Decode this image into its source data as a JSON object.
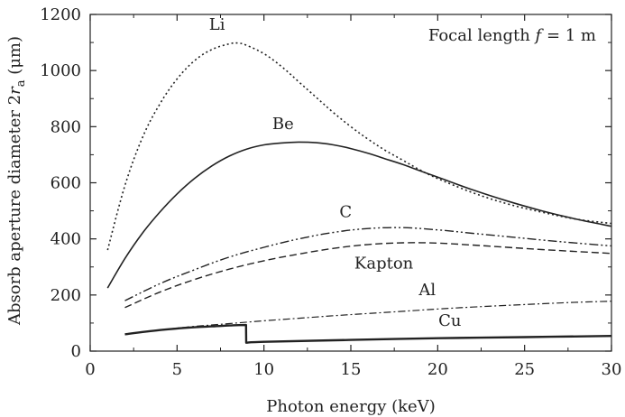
{
  "chart_data": {
    "type": "line",
    "xlabel": "Photon energy (keV)",
    "ylabel": {
      "prefix": "Absorb aperture diameter 2",
      "var": "r",
      "sub": "a",
      "suffix": " (μm)"
    },
    "xlim": [
      0,
      30
    ],
    "ylim": [
      0,
      1200
    ],
    "xticks": [
      0,
      5,
      10,
      15,
      20,
      25,
      30
    ],
    "yticks": [
      0,
      200,
      400,
      600,
      800,
      1000,
      1200
    ],
    "grid": false,
    "legend": "none",
    "annotation": {
      "prefix": "Focal length ",
      "var": "f",
      "suffix": " = 1 m"
    },
    "series": [
      {
        "name": "Li",
        "dash": "2,3",
        "width": 1.6,
        "label_at": [
          7.3,
          1145
        ],
        "points": [
          [
            1,
            360
          ],
          [
            2,
            590
          ],
          [
            3,
            760
          ],
          [
            4,
            880
          ],
          [
            5,
            970
          ],
          [
            6,
            1035
          ],
          [
            7,
            1075
          ],
          [
            8,
            1095
          ],
          [
            8.5,
            1098
          ],
          [
            9,
            1090
          ],
          [
            10,
            1060
          ],
          [
            11,
            1015
          ],
          [
            12,
            960
          ],
          [
            13,
            905
          ],
          [
            14,
            850
          ],
          [
            15,
            800
          ],
          [
            16,
            755
          ],
          [
            17,
            715
          ],
          [
            18,
            680
          ],
          [
            19,
            645
          ],
          [
            20,
            615
          ],
          [
            22,
            565
          ],
          [
            24,
            525
          ],
          [
            26,
            495
          ],
          [
            28,
            470
          ],
          [
            30,
            455
          ]
        ]
      },
      {
        "name": "Be",
        "dash": "",
        "width": 1.6,
        "label_at": [
          11.1,
          792
        ],
        "points": [
          [
            1,
            225
          ],
          [
            2,
            330
          ],
          [
            3,
            420
          ],
          [
            4,
            495
          ],
          [
            5,
            560
          ],
          [
            6,
            615
          ],
          [
            7,
            660
          ],
          [
            8,
            695
          ],
          [
            9,
            720
          ],
          [
            10,
            735
          ],
          [
            11,
            742
          ],
          [
            12,
            745
          ],
          [
            13,
            743
          ],
          [
            14,
            735
          ],
          [
            15,
            722
          ],
          [
            16,
            705
          ],
          [
            17,
            685
          ],
          [
            18,
            665
          ],
          [
            19,
            642
          ],
          [
            20,
            620
          ],
          [
            22,
            575
          ],
          [
            24,
            535
          ],
          [
            26,
            500
          ],
          [
            28,
            470
          ],
          [
            30,
            445
          ]
        ]
      },
      {
        "name": "C",
        "dash": "10,3,2,3,2,3",
        "width": 1.4,
        "label_at": [
          14.7,
          477
        ],
        "points": [
          [
            2,
            180
          ],
          [
            4,
            240
          ],
          [
            6,
            290
          ],
          [
            8,
            335
          ],
          [
            10,
            370
          ],
          [
            12,
            400
          ],
          [
            14,
            423
          ],
          [
            16,
            437
          ],
          [
            18,
            440
          ],
          [
            20,
            432
          ],
          [
            22,
            420
          ],
          [
            24,
            408
          ],
          [
            26,
            396
          ],
          [
            28,
            385
          ],
          [
            30,
            375
          ]
        ]
      },
      {
        "name": "Kapton",
        "dash": "8,4",
        "width": 1.4,
        "label_at": [
          16.9,
          295
        ],
        "points": [
          [
            2,
            155
          ],
          [
            4,
            210
          ],
          [
            6,
            255
          ],
          [
            8,
            292
          ],
          [
            10,
            322
          ],
          [
            12,
            346
          ],
          [
            14,
            366
          ],
          [
            16,
            380
          ],
          [
            18,
            386
          ],
          [
            20,
            385
          ],
          [
            22,
            378
          ],
          [
            24,
            370
          ],
          [
            26,
            362
          ],
          [
            28,
            355
          ],
          [
            30,
            348
          ]
        ]
      },
      {
        "name": "Al",
        "dash": "8,3,2,3",
        "width": 1.2,
        "label_at": [
          19.4,
          200
        ],
        "points": [
          [
            2,
            60
          ],
          [
            4,
            75
          ],
          [
            6,
            88
          ],
          [
            8,
            98
          ],
          [
            10,
            108
          ],
          [
            12,
            117
          ],
          [
            14,
            126
          ],
          [
            16,
            134
          ],
          [
            18,
            142
          ],
          [
            20,
            150
          ],
          [
            22,
            157
          ],
          [
            24,
            163
          ],
          [
            26,
            169
          ],
          [
            28,
            174
          ],
          [
            30,
            178
          ]
        ]
      },
      {
        "name": "Cu",
        "dash": "",
        "width": 2.4,
        "label_at": [
          20.7,
          90
        ],
        "points": [
          [
            2,
            60
          ],
          [
            4,
            75
          ],
          [
            6,
            85
          ],
          [
            7,
            88
          ],
          [
            8.2,
            92
          ],
          [
            8.97,
            93
          ],
          [
            8.98,
            30
          ],
          [
            10,
            33
          ],
          [
            15,
            40
          ],
          [
            20,
            46
          ],
          [
            25,
            50
          ],
          [
            30,
            54
          ]
        ]
      }
    ]
  }
}
